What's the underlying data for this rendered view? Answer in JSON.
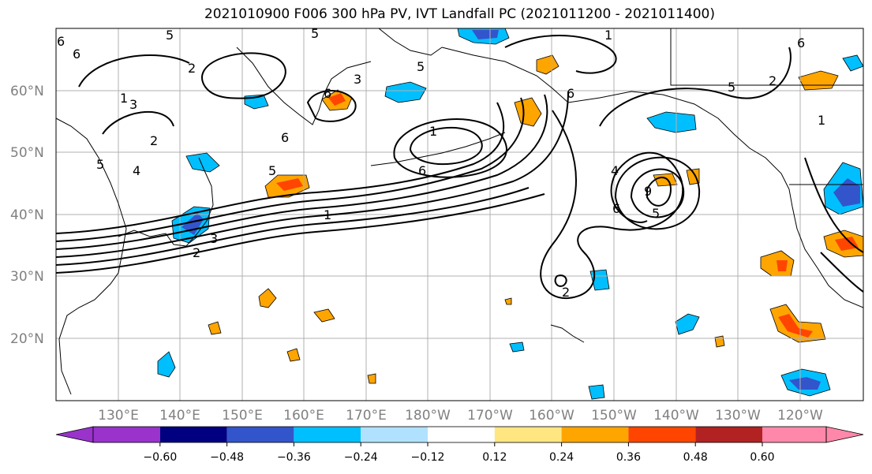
{
  "title": "2021010900 F006 300 hPa PV, IVT Landfall PC (2021011200 - 2021011400)",
  "map": {
    "lat_labels": [
      "60°N",
      "50°N",
      "40°N",
      "30°N",
      "20°N"
    ],
    "lon_labels": [
      "130°E",
      "140°E",
      "150°E",
      "160°E",
      "170°E",
      "180°W",
      "170°W",
      "160°W",
      "150°W",
      "140°W",
      "130°W",
      "120°W"
    ],
    "pv_contour_labels": [
      "6",
      "5",
      "6",
      "2",
      "3",
      "5",
      "3",
      "6",
      "4",
      "1",
      "2",
      "1",
      "6",
      "5",
      "6",
      "5",
      "5",
      "1",
      "3",
      "2",
      "1",
      "2",
      "6",
      "4",
      "9",
      "6",
      "5",
      "2",
      "1",
      "6",
      "5"
    ],
    "grid": true,
    "colors": {
      "coastline": "#000000",
      "grid": "#b0b0b0",
      "contour": "#000000"
    }
  },
  "colorbar": {
    "tick_labels": [
      "−0.60",
      "−0.48",
      "−0.36",
      "−0.24",
      "−0.12",
      "0.12",
      "0.24",
      "0.36",
      "0.48",
      "0.60"
    ],
    "colors": [
      "#9933cc",
      "#000080",
      "#3355cc",
      "#00bfff",
      "#b0e2ff",
      "#ffffff",
      "#ffe680",
      "#ffa500",
      "#ff4500",
      "#b22222",
      "#ff88aa"
    ]
  }
}
